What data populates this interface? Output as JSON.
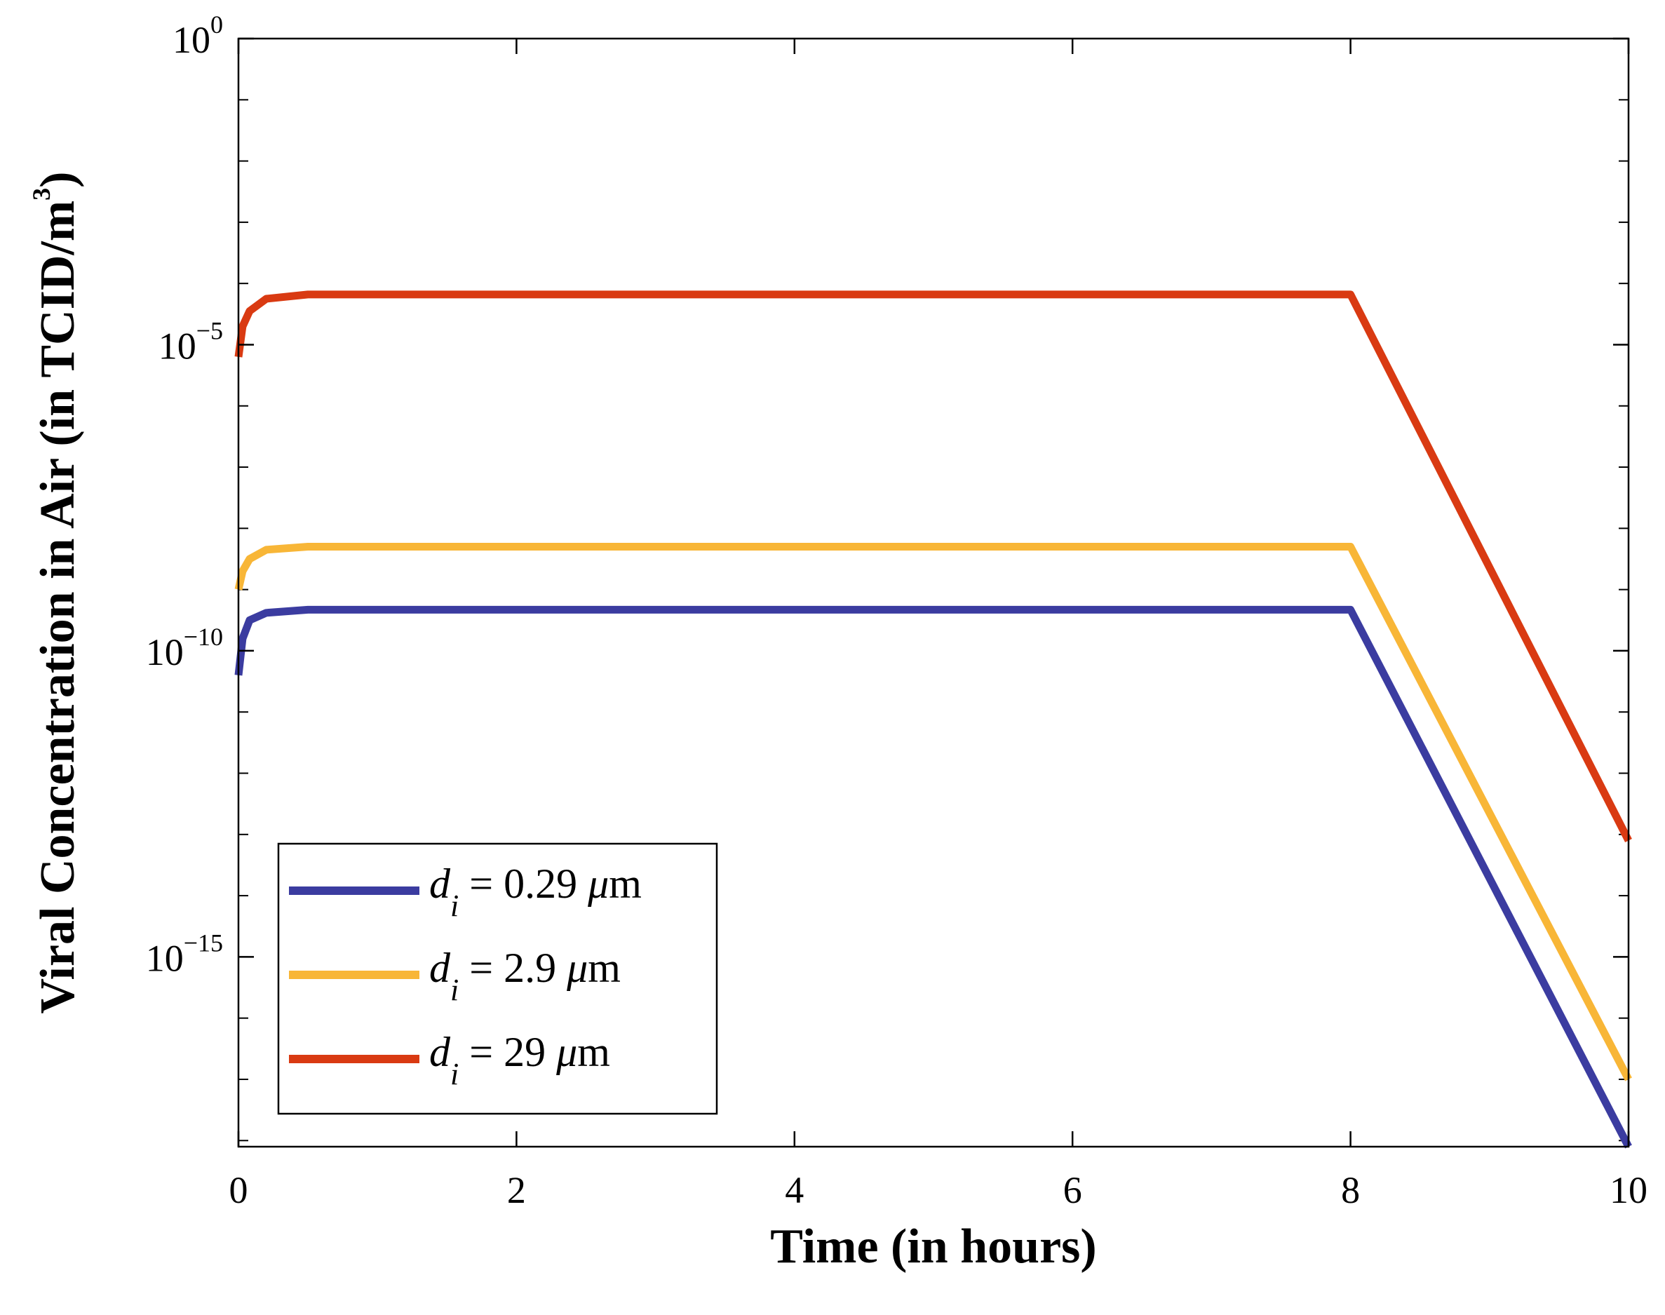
{
  "chart_data": {
    "type": "line",
    "title": "",
    "xlabel": "Time (in hours)",
    "ylabel": "Viral Concentration in Air  (in TCID/m",
    "ylabel_exponent": "3",
    "ylabel_close": ")",
    "yscale": "log",
    "xlim": [
      0,
      10
    ],
    "ylim_log10": [
      -18.1,
      0
    ],
    "x_ticks": [
      {
        "value": 0,
        "label": "0"
      },
      {
        "value": 2,
        "label": "2"
      },
      {
        "value": 4,
        "label": "4"
      },
      {
        "value": 6,
        "label": "6"
      },
      {
        "value": 8,
        "label": "8"
      },
      {
        "value": 10,
        "label": "10"
      }
    ],
    "y_ticks": [
      {
        "exp": 0,
        "base": "10",
        "sup": "0"
      },
      {
        "exp": -5,
        "base": "10",
        "sup": "−5"
      },
      {
        "exp": -10,
        "base": "10",
        "sup": "−10"
      },
      {
        "exp": -15,
        "base": "10",
        "sup": "−15"
      }
    ],
    "legend_position": "bottom-left",
    "series": [
      {
        "name_prefix": "d",
        "name_sub": "i",
        "name_suffix": " = 0.29 ",
        "name_unit_mu": "μ",
        "name_unit": "m",
        "color": "#3b3ca0",
        "points": [
          [
            0,
            -10.4
          ],
          [
            0.03,
            -9.8
          ],
          [
            0.08,
            -9.5
          ],
          [
            0.2,
            -9.38
          ],
          [
            0.5,
            -9.33
          ],
          [
            8,
            -9.33
          ],
          [
            10,
            -18.1
          ]
        ]
      },
      {
        "name_prefix": "d",
        "name_sub": "i",
        "name_suffix": " = 2.9 ",
        "name_unit_mu": "μ",
        "name_unit": "m",
        "color": "#f8b637",
        "points": [
          [
            0,
            -9.0
          ],
          [
            0.03,
            -8.7
          ],
          [
            0.08,
            -8.5
          ],
          [
            0.2,
            -8.35
          ],
          [
            0.5,
            -8.3
          ],
          [
            8,
            -8.3
          ],
          [
            10,
            -17.0
          ]
        ]
      },
      {
        "name_prefix": "d",
        "name_sub": "i",
        "name_suffix": " = 29 ",
        "name_unit_mu": "μ",
        "name_unit": "m",
        "color": "#d93a12",
        "points": [
          [
            0,
            -5.2
          ],
          [
            0.03,
            -4.7
          ],
          [
            0.08,
            -4.45
          ],
          [
            0.2,
            -4.25
          ],
          [
            0.5,
            -4.18
          ],
          [
            8,
            -4.18
          ],
          [
            10,
            -13.1
          ]
        ]
      }
    ]
  }
}
